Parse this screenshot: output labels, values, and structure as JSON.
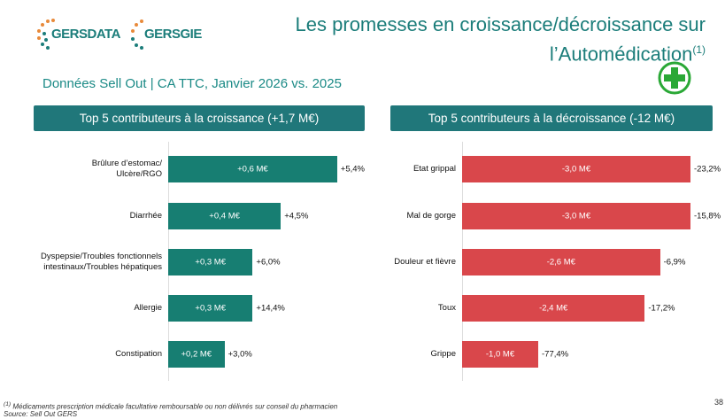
{
  "header": {
    "logos": [
      "GERSDATA",
      "GERSGIE"
    ],
    "title": "Les promesses en croissance/décroissance sur l’Automédication",
    "title_note": "(1)",
    "subtitle": "Données Sell Out | CA TTC, Janvier 2026 vs. 2025"
  },
  "chart_data": [
    {
      "type": "bar",
      "title": "Top 5 contributeurs à la croissance (+1,7 M€)",
      "header_color": "#20777a",
      "color": "#177e72",
      "categories": [
        "Brûlure d’estomac/\nUlcère/RGO",
        "Diarrhée",
        "Dyspepsie/Troubles fonctionnels\nintestinaux/Troubles hépatiques",
        "Allergie",
        "Constipation"
      ],
      "values": [
        0.6,
        0.4,
        0.3,
        0.3,
        0.2
      ],
      "value_labels": [
        "+0,6 M€",
        "+0,4 M€",
        "+0,3 M€",
        "+0,3 M€",
        "+0,2 M€"
      ],
      "change_labels": [
        "+5,4%",
        "+4,5%",
        "+6,0%",
        "+14,4%",
        "+3,0%"
      ]
    },
    {
      "type": "bar",
      "title": "Top 5 contributeurs à la décroissance (-12 M€)",
      "header_color": "#20777a",
      "color": "#d9474b",
      "categories": [
        "Etat grippal",
        "Mal de gorge",
        "Douleur et fièvre",
        "Toux",
        "Grippe"
      ],
      "values": [
        -3.0,
        -3.0,
        -2.6,
        -2.4,
        -1.0
      ],
      "value_labels": [
        "-3,0 M€",
        "-3,0 M€",
        "-2,6 M€",
        "-2,4 M€",
        "-1,0 M€"
      ],
      "change_labels": [
        "-23,2%",
        "-15,8%",
        "-6,9%",
        "-17,2%",
        "-77,4%"
      ]
    }
  ],
  "footer": {
    "footnote_mark": "(1)",
    "footnote": "Médicaments prescription médicale facultative remboursable ou non délivrés sur conseil du pharmacien",
    "source": "Source: Sell Out GERS",
    "page": "38"
  }
}
